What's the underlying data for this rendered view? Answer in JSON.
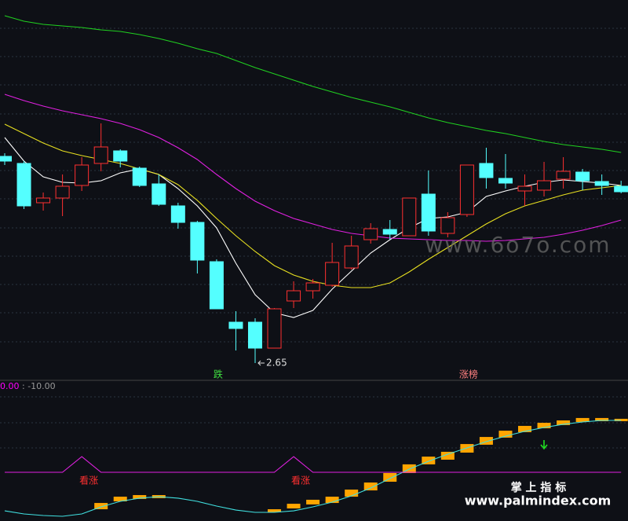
{
  "chart_data": [
    {
      "type": "candlestick",
      "open": [
        3.965,
        3.92,
        3.67,
        3.7,
        3.78,
        3.92,
        4.0,
        3.89,
        3.79,
        3.65,
        3.545,
        3.295,
        2.91,
        2.91,
        2.745,
        3.045,
        3.11,
        3.145,
        3.255,
        3.435,
        3.5,
        3.46,
        3.725,
        3.475,
        3.595,
        3.92,
        3.825,
        3.745,
        3.75,
        3.82,
        3.865,
        3.805,
        3.775
      ],
      "close": [
        3.935,
        3.65,
        3.7,
        3.775,
        3.91,
        4.025,
        3.935,
        3.78,
        3.66,
        3.545,
        3.305,
        2.995,
        2.87,
        2.745,
        2.995,
        3.11,
        3.16,
        3.29,
        3.395,
        3.505,
        3.47,
        3.7,
        3.49,
        3.575,
        3.91,
        3.83,
        3.795,
        3.775,
        3.81,
        3.87,
        3.81,
        3.78,
        3.74
      ],
      "high": [
        3.985,
        3.935,
        3.735,
        3.85,
        3.96,
        4.175,
        4.01,
        3.9,
        3.85,
        3.67,
        3.555,
        3.31,
        2.98,
        2.935,
        3.0,
        3.17,
        3.185,
        3.415,
        3.46,
        3.54,
        3.56,
        3.7,
        3.875,
        3.61,
        3.91,
        4.02,
        3.98,
        3.85,
        3.93,
        3.96,
        3.885,
        3.85,
        3.81
      ],
      "low": [
        3.91,
        3.63,
        3.62,
        3.585,
        3.745,
        3.87,
        3.895,
        3.77,
        3.65,
        3.505,
        3.22,
        2.995,
        2.73,
        2.65,
        2.745,
        3.0,
        3.06,
        3.135,
        3.245,
        3.41,
        3.435,
        3.46,
        3.46,
        3.45,
        3.58,
        3.76,
        3.76,
        3.65,
        3.71,
        3.76,
        3.75,
        3.72,
        3.73
      ],
      "up_color": "#ff3030",
      "down_color": "#54ffff",
      "ma": [
        {
          "color": "#ffffff",
          "values": [
            4.085,
            3.935,
            3.835,
            3.8,
            3.795,
            3.81,
            3.86,
            3.885,
            3.85,
            3.76,
            3.65,
            3.51,
            3.285,
            3.085,
            2.97,
            2.94,
            2.985,
            3.12,
            3.235,
            3.35,
            3.435,
            3.51,
            3.57,
            3.58,
            3.61,
            3.71,
            3.745,
            3.775,
            3.8,
            3.815,
            3.805,
            3.795,
            3.78
          ]
        },
        {
          "color": "#e8e020",
          "values": [
            4.17,
            4.11,
            4.05,
            4.0,
            3.97,
            3.945,
            3.92,
            3.885,
            3.85,
            3.785,
            3.685,
            3.57,
            3.46,
            3.36,
            3.27,
            3.21,
            3.17,
            3.145,
            3.13,
            3.13,
            3.16,
            3.23,
            3.31,
            3.385,
            3.46,
            3.535,
            3.6,
            3.65,
            3.685,
            3.72,
            3.75,
            3.765,
            3.78
          ]
        },
        {
          "color": "#e020e0",
          "values": [
            4.36,
            4.32,
            4.285,
            4.255,
            4.23,
            4.205,
            4.175,
            4.135,
            4.085,
            4.02,
            3.945,
            3.85,
            3.76,
            3.68,
            3.62,
            3.57,
            3.535,
            3.5,
            3.475,
            3.46,
            3.445,
            3.44,
            3.435,
            3.43,
            3.43,
            3.425,
            3.43,
            3.44,
            3.45,
            3.47,
            3.495,
            3.525,
            3.56
          ]
        },
        {
          "color": "#20d020",
          "values": [
            4.86,
            4.825,
            4.805,
            4.795,
            4.785,
            4.77,
            4.76,
            4.74,
            4.715,
            4.685,
            4.65,
            4.62,
            4.575,
            4.53,
            4.49,
            4.45,
            4.41,
            4.375,
            4.34,
            4.31,
            4.28,
            4.245,
            4.21,
            4.18,
            4.155,
            4.13,
            4.11,
            4.085,
            4.06,
            4.04,
            4.025,
            4.01,
            3.99
          ]
        }
      ],
      "ylim": [
        2.545,
        4.96
      ],
      "low_label": "2.65",
      "signals": [
        {
          "at": 11,
          "text": "跌",
          "color": "#40e040"
        },
        {
          "at": 24,
          "text": "涨榜",
          "color": "#ff8080"
        }
      ],
      "watermark": "www.6o7o.com"
    },
    {
      "type": "indicator",
      "header": [
        {
          "text": "0.00",
          "color": "#ff00ff"
        },
        {
          "text": " : -10.00",
          "color": "#999999"
        }
      ],
      "ylim": [
        0,
        100
      ],
      "lines": [
        {
          "color": "#40e0e0",
          "values": [
            7.6,
            5.3,
            4.1,
            3.5,
            5.3,
            10.6,
            14.7,
            17.1,
            18.2,
            17.1,
            14.7,
            11.2,
            8.2,
            6.5,
            6.5,
            7.6,
            10.6,
            14.1,
            18.8,
            24.7,
            31.8,
            38.8,
            44.7,
            50,
            54.7,
            59.4,
            63.5,
            67.1,
            70,
            72.4,
            74.1,
            75.3,
            75.3
          ]
        },
        {
          "color": "#e020e0",
          "values": [
            36.5,
            36.5,
            36.5,
            36.5,
            48.2,
            36.5,
            36.5,
            36.5,
            36.5,
            36.5,
            36.5,
            36.5,
            36.5,
            36.5,
            36.5,
            48.2,
            36.5,
            36.5,
            36.5,
            36.5,
            36.5,
            36.5,
            36.5,
            36.5,
            36.5,
            36.5,
            36.5,
            36.5,
            36.5,
            36.5,
            36.5,
            36.5,
            36.5
          ]
        }
      ],
      "bar_color": "#ffa500",
      "bars": [
        null,
        null,
        null,
        null,
        null,
        [
          8.8,
          13.5
        ],
        [
          14.7,
          18.2
        ],
        [
          16.5,
          19.4
        ],
        [
          17.1,
          19.4
        ],
        null,
        null,
        null,
        null,
        null,
        [
          6.5,
          8.8
        ],
        [
          9.4,
          12.9
        ],
        [
          12.4,
          15.9
        ],
        [
          13.5,
          18.2
        ],
        [
          18.2,
          23.5
        ],
        [
          22.9,
          28.8
        ],
        [
          29.4,
          35.9
        ],
        [
          35.9,
          42.4
        ],
        [
          42.4,
          48.2
        ],
        [
          45.9,
          51.8
        ],
        [
          51.2,
          57.6
        ],
        [
          57.1,
          62.9
        ],
        [
          62.4,
          67.6
        ],
        [
          66.5,
          71.2
        ],
        [
          69.4,
          73.5
        ],
        [
          71.8,
          75.3
        ],
        [
          74.1,
          77.1
        ],
        [
          74.7,
          77.1
        ],
        [
          74.7,
          76.5
        ]
      ],
      "signals": [
        {
          "at": 4,
          "text": "看涨",
          "color": "#ff3030"
        },
        {
          "at": 15,
          "text": "看涨",
          "color": "#ff3030"
        }
      ]
    }
  ],
  "footer": {
    "title": "掌 上 指 标",
    "url": "www.palmindex.com"
  }
}
